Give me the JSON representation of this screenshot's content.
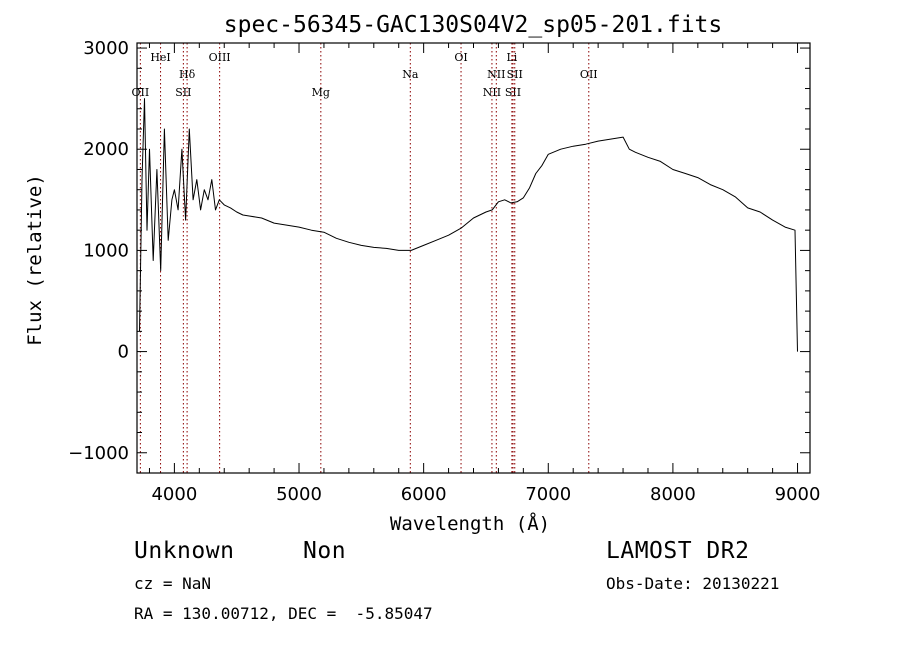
{
  "chart_data": {
    "type": "line",
    "title": "spec-56345-GAC130S04V2_sp05-201.fits",
    "xlabel": "Wavelength (Å)",
    "ylabel": "Flux (relative)",
    "xlim": [
      3700,
      9100
    ],
    "ylim": [
      -1200,
      3050
    ],
    "xticks": [
      4000,
      5000,
      6000,
      7000,
      8000,
      9000
    ],
    "yticks": [
      -1000,
      0,
      1000,
      2000,
      3000
    ],
    "grid": false,
    "colors": {
      "spectrum": "#000000",
      "lines": "#8b0000"
    },
    "spectral_lines": [
      {
        "label": "OII",
        "wavelength": 3727,
        "tier": 3
      },
      {
        "label": "HeI",
        "wavelength": 3889,
        "tier": 1
      },
      {
        "label": "Hδ",
        "wavelength": 4102,
        "tier": 2
      },
      {
        "label": "SII",
        "wavelength": 4072,
        "tier": 3
      },
      {
        "label": "OIII",
        "wavelength": 4363,
        "tier": 1
      },
      {
        "label": "Mg",
        "wavelength": 5175,
        "tier": 3
      },
      {
        "label": "Na",
        "wavelength": 5893,
        "tier": 2
      },
      {
        "label": "OI",
        "wavelength": 6300,
        "tier": 1
      },
      {
        "label": "NII",
        "wavelength": 6548,
        "tier": 3
      },
      {
        "label": "NII",
        "wavelength": 6583,
        "tier": 2
      },
      {
        "label": "Li",
        "wavelength": 6708,
        "tier": 1
      },
      {
        "label": "SII",
        "wavelength": 6717,
        "tier": 3
      },
      {
        "label": "SII",
        "wavelength": 6731,
        "tier": 2
      },
      {
        "label": "OII",
        "wavelength": 7325,
        "tier": 2
      }
    ],
    "series": [
      {
        "x": [
          3720,
          3740,
          3760,
          3780,
          3800,
          3830,
          3860,
          3890,
          3920,
          3950,
          3980,
          4000,
          4030,
          4060,
          4090,
          4120,
          4150,
          4180,
          4210,
          4240,
          4270,
          4300,
          4330,
          4360,
          4400,
          4450,
          4500,
          4550,
          4600,
          4650,
          4700,
          4800,
          4900,
          5000,
          5100,
          5200,
          5300,
          5400,
          5500,
          5600,
          5700,
          5800,
          5900,
          6000,
          6100,
          6200,
          6300,
          6400,
          6500,
          6550,
          6600,
          6650,
          6700,
          6750,
          6800,
          6850,
          6900,
          6950,
          7000,
          7100,
          7200,
          7300,
          7400,
          7500,
          7600,
          7650,
          7700,
          7800,
          7900,
          8000,
          8100,
          8200,
          8300,
          8400,
          8500,
          8600,
          8700,
          8800,
          8900,
          8980,
          9000
        ],
        "y": [
          200,
          1700,
          2500,
          1200,
          2000,
          900,
          1800,
          800,
          2200,
          1100,
          1500,
          1600,
          1400,
          2000,
          1300,
          2200,
          1500,
          1700,
          1400,
          1600,
          1500,
          1700,
          1400,
          1500,
          1450,
          1420,
          1380,
          1350,
          1340,
          1330,
          1320,
          1270,
          1250,
          1230,
          1200,
          1180,
          1120,
          1080,
          1050,
          1030,
          1020,
          1000,
          1000,
          1050,
          1100,
          1150,
          1220,
          1320,
          1380,
          1400,
          1480,
          1500,
          1470,
          1480,
          1520,
          1620,
          1760,
          1840,
          1950,
          2000,
          2030,
          2050,
          2080,
          2100,
          2120,
          2000,
          1970,
          1920,
          1880,
          1800,
          1760,
          1720,
          1650,
          1600,
          1530,
          1420,
          1380,
          1300,
          1230,
          1200,
          0
        ]
      }
    ]
  },
  "info": {
    "object_class": "Unknown",
    "object_subclass": "Non",
    "survey": "LAMOST DR2",
    "cz": "cz = NaN",
    "obs_date": "Obs-Date: 20130221",
    "coords": "RA = 130.00712, DEC =  -5.85047"
  }
}
